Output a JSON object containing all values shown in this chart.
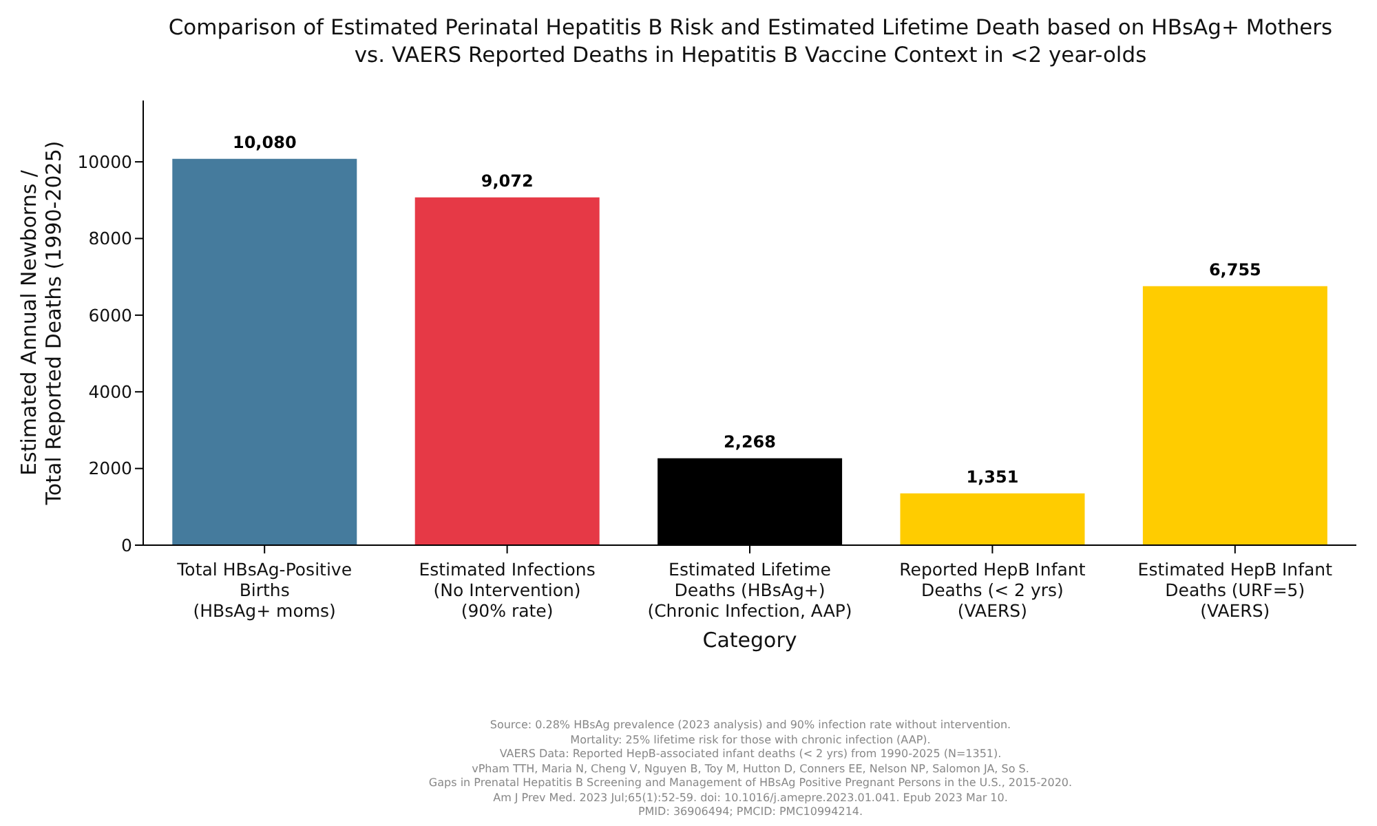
{
  "chart_data": {
    "type": "bar",
    "title": "Comparison of Estimated Perinatal Hepatitis B Risk and Estimated Lifetime Death based on HBsAg+ Mothers\nvs. VAERS Reported Deaths in Hepatitis B Vaccine Context in <2 year-olds",
    "xlabel": "Category",
    "ylabel": "Estimated Annual Newborns /\nTotal Reported Deaths (1990-2025)",
    "categories": [
      "Total HBsAg-Positive\nBirths\n(HBsAg+ moms)",
      "Estimated Infections\n(No Intervention)\n(90% rate)",
      "Estimated Lifetime\nDeaths (HBsAg+)\n(Chronic Infection, AAP)",
      "Reported HepB Infant\nDeaths (< 2 yrs)\n(VAERS)",
      "Estimated HepB Infant\nDeaths (URF=5)\n(VAERS)"
    ],
    "values": [
      10080,
      9072,
      2268,
      1351,
      6755
    ],
    "value_labels": [
      "10,080",
      "9,072",
      "2,268",
      "1,351",
      "6,755"
    ],
    "colors": [
      "#457b9d",
      "#e63946",
      "#000000",
      "#ffcc00",
      "#ffcc00"
    ],
    "ylim": [
      0,
      11600
    ],
    "yticks": [
      0,
      2000,
      4000,
      6000,
      8000,
      10000
    ],
    "grid": false,
    "legend": false,
    "annotations": [
      "Source: 0.28% HBsAg prevalence (2023 analysis) and 90% infection rate without intervention.\nMortality: 25% lifetime risk for those with chronic infection (AAP).\nVAERS Data: Reported HepB-associated infant deaths (< 2 yrs) from 1990-2025 (N=1351).\nvPham TTH, Maria N, Cheng V, Nguyen B, Toy M, Hutton D, Conners EE, Nelson NP, Salomon JA, So S.\nGaps in Prenatal Hepatitis B Screening and Management of HBsAg Positive Pregnant Persons in the U.S., 2015-2020.\nAm J Prev Med. 2023 Jul;65(1):52-59. doi: 10.1016/j.amepre.2023.01.041. Epub 2023 Mar 10.\nPMID: 36906494; PMCID: PMC10994214."
    ]
  }
}
